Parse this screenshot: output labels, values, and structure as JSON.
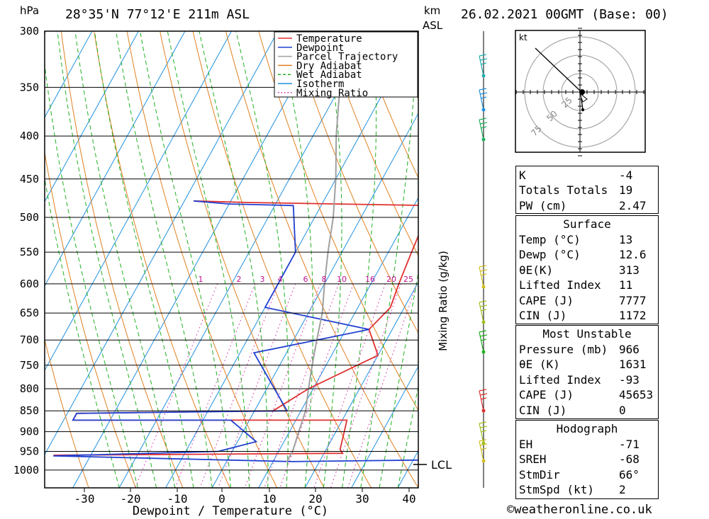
{
  "header": {
    "location": "28°35'N 77°12'E 211m ASL",
    "datetime": "26.02.2021 00GMT (Base: 00)",
    "unit_hpa": "hPa",
    "unit_km": "km",
    "unit_asl": "ASL"
  },
  "chart_data": {
    "type": "line",
    "title": "28°35'N 77°12'E 211m ASL",
    "xlabel": "Dewpoint / Temperature (°C)",
    "ylabel": "hPa",
    "right_label": "Mixing Ratio (g/kg)",
    "x_ticks": [
      "-30",
      "-20",
      "-10",
      "0",
      "10",
      "20",
      "30",
      "40"
    ],
    "x_tick_values": [
      -30,
      -20,
      -10,
      0,
      10,
      20,
      30,
      40
    ],
    "y_ticks": [
      "300",
      "350",
      "400",
      "450",
      "500",
      "550",
      "600",
      "650",
      "700",
      "750",
      "800",
      "850",
      "900",
      "950",
      "1000"
    ],
    "y_tick_values": [
      300,
      350,
      400,
      450,
      500,
      550,
      600,
      650,
      700,
      750,
      800,
      850,
      900,
      950,
      1000
    ],
    "xlim": [
      -38,
      42
    ],
    "ylim": [
      1050,
      300
    ],
    "mixing_ratio_labels": [
      "1",
      "2",
      "3",
      "4",
      "6",
      "8",
      "10",
      "16",
      "20",
      "25"
    ],
    "lcl_label": "LCL",
    "legend_position": "top-right",
    "legend": [
      {
        "name": "Temperature",
        "color": "#e03030",
        "style": "solid"
      },
      {
        "name": "Dewpoint",
        "color": "#2040d0",
        "style": "solid"
      },
      {
        "name": "Parcel Trajectory",
        "color": "#a0a0a0",
        "style": "solid"
      },
      {
        "name": "Dry Adiabat",
        "color": "#e08020",
        "style": "solid"
      },
      {
        "name": "Wet Adiabat",
        "color": "#20b020",
        "style": "dashed"
      },
      {
        "name": "Isotherm",
        "color": "#2090e0",
        "style": "solid"
      },
      {
        "name": "Mixing Ratio",
        "color": "#d020a0",
        "style": "dotted"
      }
    ],
    "series": [
      {
        "name": "Temperature",
        "points": [
          [
            -38,
            478
          ],
          [
            -26,
            480
          ],
          [
            14,
            484
          ],
          [
            14,
            500
          ],
          [
            15,
            550
          ],
          [
            16,
            600
          ],
          [
            17,
            640
          ],
          [
            15,
            680
          ],
          [
            20,
            730
          ],
          [
            9,
            800
          ],
          [
            4,
            850
          ],
          [
            -38,
            856
          ],
          [
            -38,
            872
          ],
          [
            21,
            872
          ],
          [
            23,
            945
          ],
          [
            24,
            955
          ],
          [
            -38,
            960
          ]
        ]
      },
      {
        "name": "Dewpoint",
        "points": [
          [
            -38,
            478
          ],
          [
            -30,
            482
          ],
          [
            -16,
            484
          ],
          [
            -10,
            550
          ],
          [
            -10,
            600
          ],
          [
            -10,
            640
          ],
          [
            15,
            680
          ],
          [
            -7,
            725
          ],
          [
            7,
            850
          ],
          [
            -38,
            856
          ],
          [
            -38,
            872
          ],
          [
            -4,
            872
          ],
          [
            4,
            925
          ],
          [
            -3,
            950
          ],
          [
            -38,
            962
          ],
          [
            -38,
            962
          ],
          [
            14,
            977
          ],
          [
            41,
            973
          ]
        ]
      },
      {
        "name": "Parcel Trajectory",
        "points": [
          [
            -25,
            300
          ],
          [
            -20,
            350
          ],
          [
            -15,
            400
          ],
          [
            -10,
            450
          ],
          [
            -6,
            500
          ],
          [
            -3,
            550
          ],
          [
            0,
            600
          ],
          [
            3,
            650
          ],
          [
            5,
            700
          ],
          [
            7,
            750
          ],
          [
            9,
            800
          ],
          [
            11,
            850
          ],
          [
            12,
            900
          ],
          [
            13,
            950
          ],
          [
            13,
            978
          ]
        ]
      }
    ]
  },
  "hodograph": {
    "unit": "kt",
    "ring_labels": [
      "25",
      "50",
      "75"
    ]
  },
  "indices": {
    "general": [
      {
        "k": "K",
        "v": "-4"
      },
      {
        "k": "Totals Totals",
        "v": "19"
      },
      {
        "k": "PW (cm)",
        "v": "2.47"
      }
    ],
    "surface_title": "Surface",
    "surface": [
      {
        "k": "Temp (°C)",
        "v": "13"
      },
      {
        "k": "Dewp (°C)",
        "v": "12.6"
      },
      {
        "k": "θE(K)",
        "v": "313"
      },
      {
        "k": "Lifted Index",
        "v": "11"
      },
      {
        "k": "CAPE (J)",
        "v": "7777"
      },
      {
        "k": "CIN (J)",
        "v": "1172"
      }
    ],
    "mu_title": "Most Unstable",
    "most_unstable": [
      {
        "k": "Pressure (mb)",
        "v": "966"
      },
      {
        "k": "θE (K)",
        "v": "1631"
      },
      {
        "k": "Lifted Index",
        "v": "-93"
      },
      {
        "k": "CAPE (J)",
        "v": "45653"
      },
      {
        "k": "CIN (J)",
        "v": "0"
      }
    ],
    "hodo_title": "Hodograph",
    "hodo": [
      {
        "k": "EH",
        "v": "-71"
      },
      {
        "k": "SREH",
        "v": "-68"
      },
      {
        "k": "StmDir",
        "v": "66°"
      },
      {
        "k": "StmSpd (kt)",
        "v": "2"
      }
    ]
  },
  "footer": {
    "copyright": "©weatheronline.co.uk"
  }
}
